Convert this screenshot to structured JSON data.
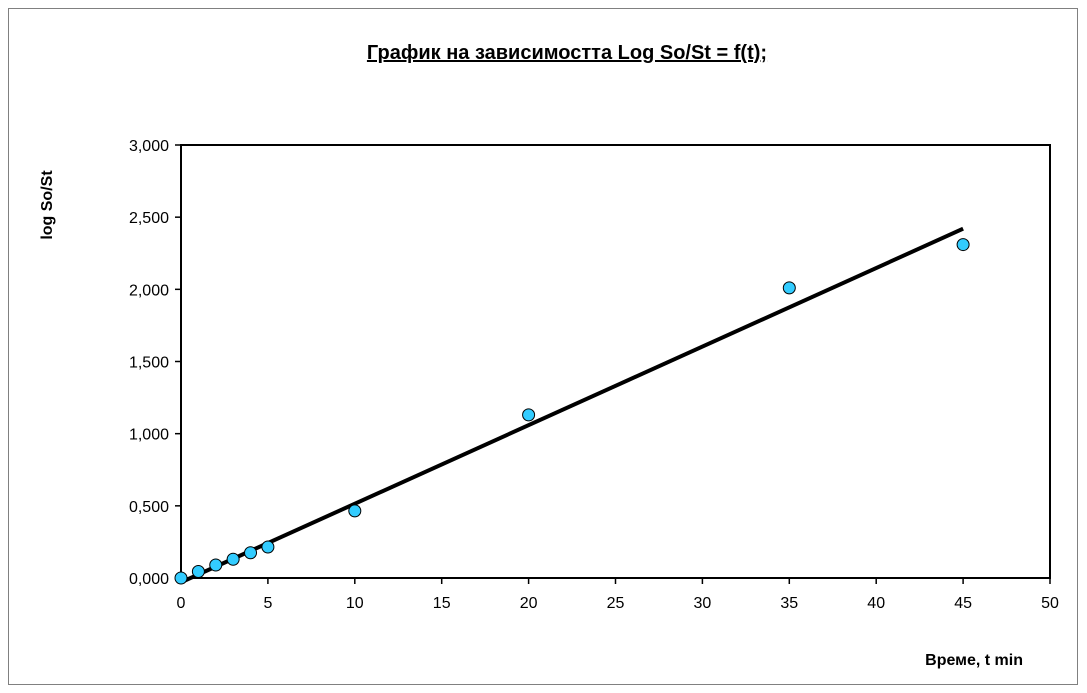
{
  "chart_data": {
    "type": "scatter",
    "title": "График на зависимостта Log So/St = f(t);",
    "xlabel": "Време, t min",
    "ylabel": "log So/St",
    "xlim": [
      0,
      50
    ],
    "ylim": [
      0,
      3
    ],
    "x_ticks": [
      0,
      5,
      10,
      15,
      20,
      25,
      30,
      35,
      40,
      45,
      50
    ],
    "x_tick_labels": [
      "0",
      "5",
      "10",
      "15",
      "20",
      "25",
      "30",
      "35",
      "40",
      "45",
      "50"
    ],
    "y_ticks": [
      0,
      0.5,
      1,
      1.5,
      2,
      2.5,
      3
    ],
    "y_tick_labels": [
      "0,000",
      "0,500",
      "1,000",
      "1,500",
      "2,000",
      "2,500",
      "3,000"
    ],
    "grid": false,
    "legend": "none",
    "series": [
      {
        "type": "scatter",
        "color": "#33CCFF",
        "points": [
          {
            "x": 0,
            "y": 0.0
          },
          {
            "x": 1,
            "y": 0.045
          },
          {
            "x": 2,
            "y": 0.09
          },
          {
            "x": 3,
            "y": 0.13
          },
          {
            "x": 4,
            "y": 0.175
          },
          {
            "x": 5,
            "y": 0.215
          },
          {
            "x": 10,
            "y": 0.465
          },
          {
            "x": 20,
            "y": 1.13
          },
          {
            "x": 35,
            "y": 2.01
          },
          {
            "x": 45,
            "y": 2.31
          }
        ]
      },
      {
        "type": "line",
        "color": "#000000",
        "points": [
          {
            "x": 0,
            "y": -0.03
          },
          {
            "x": 45,
            "y": 2.42
          }
        ]
      }
    ]
  }
}
